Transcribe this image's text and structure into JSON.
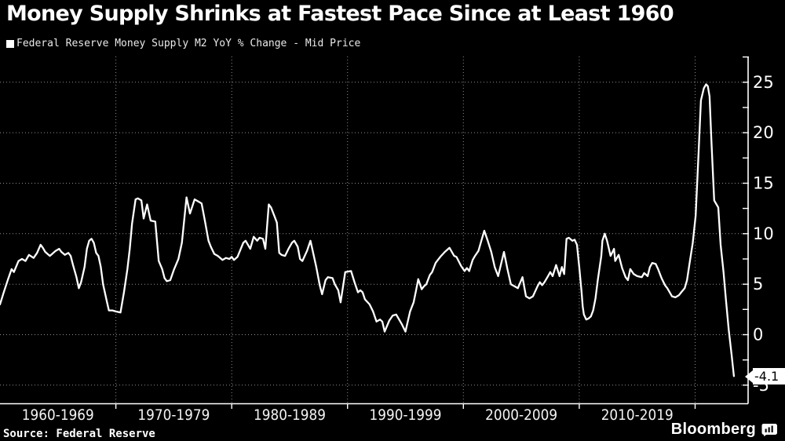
{
  "header": {
    "title": "Money Supply Shrinks at Fastest Pace Since at Least 1960",
    "legend_label": "Federal Reserve Money Supply M2 YoY % Change - Mid Price"
  },
  "footer": {
    "source": "Source: Federal Reserve",
    "brand": "Bloomberg"
  },
  "callout": {
    "label": "-4.1"
  },
  "colors": {
    "background": "#000000",
    "line": "#ffffff",
    "grid": "#8f8f8f",
    "text": "#ffffff",
    "callout_bg": "#ffffff",
    "callout_text": "#000000"
  },
  "chart_data": {
    "type": "line",
    "title": "Money Supply Shrinks at Fastest Pace Since at Least 1960",
    "series_name": "Federal Reserve Money Supply M2 YoY % Change - Mid Price",
    "x_unit": "year",
    "x_range": [
      1960,
      2024.6
    ],
    "ylim": [
      -6.9,
      27.5
    ],
    "ylabel": "YoY % Change",
    "y_axis_side": "right",
    "y_ticks_labeled": [
      25,
      20,
      15,
      10,
      5,
      0,
      -5
    ],
    "y_tick_minor_step": 2.5,
    "x_gridline_years": [
      1970,
      1980,
      1990,
      2000,
      2010,
      2020
    ],
    "x_decade_labels": [
      "1960-1969",
      "1970-1979",
      "1980-1989",
      "1990-1999",
      "2000-2009",
      "2010-2019"
    ],
    "grid": "dotted",
    "legend_position": "top-left",
    "last_point_label": "-4.1",
    "points": [
      [
        1960.0,
        3.0
      ],
      [
        1960.3,
        4.1
      ],
      [
        1960.7,
        5.5
      ],
      [
        1961.0,
        6.5
      ],
      [
        1961.2,
        6.2
      ],
      [
        1961.6,
        7.3
      ],
      [
        1961.9,
        7.5
      ],
      [
        1962.2,
        7.3
      ],
      [
        1962.5,
        7.9
      ],
      [
        1962.9,
        7.6
      ],
      [
        1963.2,
        8.1
      ],
      [
        1963.5,
        8.9
      ],
      [
        1963.7,
        8.6
      ],
      [
        1963.9,
        8.2
      ],
      [
        1964.3,
        7.8
      ],
      [
        1964.5,
        8.0
      ],
      [
        1964.8,
        8.3
      ],
      [
        1965.1,
        8.5
      ],
      [
        1965.3,
        8.2
      ],
      [
        1965.6,
        7.9
      ],
      [
        1965.9,
        8.1
      ],
      [
        1966.1,
        7.8
      ],
      [
        1966.3,
        6.9
      ],
      [
        1966.6,
        5.7
      ],
      [
        1966.8,
        4.6
      ],
      [
        1967.0,
        5.2
      ],
      [
        1967.3,
        6.7
      ],
      [
        1967.5,
        8.5
      ],
      [
        1967.7,
        9.3
      ],
      [
        1967.9,
        9.5
      ],
      [
        1968.1,
        9.1
      ],
      [
        1968.3,
        8.1
      ],
      [
        1968.5,
        7.8
      ],
      [
        1968.7,
        6.7
      ],
      [
        1968.9,
        5.0
      ],
      [
        1969.2,
        3.4
      ],
      [
        1969.4,
        2.4
      ],
      [
        1969.7,
        2.4
      ],
      [
        1970.0,
        2.3
      ],
      [
        1970.4,
        2.2
      ],
      [
        1970.7,
        4.2
      ],
      [
        1971.0,
        6.5
      ],
      [
        1971.2,
        8.5
      ],
      [
        1971.4,
        11.0
      ],
      [
        1971.7,
        13.4
      ],
      [
        1971.9,
        13.5
      ],
      [
        1972.2,
        13.3
      ],
      [
        1972.4,
        11.5
      ],
      [
        1972.7,
        12.9
      ],
      [
        1973.0,
        11.3
      ],
      [
        1973.4,
        11.2
      ],
      [
        1973.7,
        7.3
      ],
      [
        1974.0,
        6.5
      ],
      [
        1974.2,
        5.6
      ],
      [
        1974.4,
        5.3
      ],
      [
        1974.7,
        5.4
      ],
      [
        1975.0,
        6.4
      ],
      [
        1975.4,
        7.5
      ],
      [
        1975.7,
        9.1
      ],
      [
        1976.1,
        13.6
      ],
      [
        1976.4,
        12.0
      ],
      [
        1976.8,
        13.4
      ],
      [
        1977.1,
        13.2
      ],
      [
        1977.4,
        13.0
      ],
      [
        1977.7,
        11.2
      ],
      [
        1978.0,
        9.3
      ],
      [
        1978.2,
        8.7
      ],
      [
        1978.5,
        8.0
      ],
      [
        1978.8,
        7.8
      ],
      [
        1979.2,
        7.4
      ],
      [
        1979.5,
        7.6
      ],
      [
        1979.8,
        7.5
      ],
      [
        1980.0,
        7.7
      ],
      [
        1980.2,
        7.4
      ],
      [
        1980.5,
        7.7
      ],
      [
        1981.0,
        9.1
      ],
      [
        1981.2,
        9.3
      ],
      [
        1981.6,
        8.5
      ],
      [
        1981.9,
        9.7
      ],
      [
        1982.2,
        9.3
      ],
      [
        1982.4,
        9.6
      ],
      [
        1982.7,
        9.5
      ],
      [
        1982.9,
        8.5
      ],
      [
        1983.2,
        12.9
      ],
      [
        1983.4,
        12.6
      ],
      [
        1983.7,
        11.7
      ],
      [
        1983.9,
        11.1
      ],
      [
        1984.1,
        8.1
      ],
      [
        1984.3,
        7.9
      ],
      [
        1984.6,
        7.8
      ],
      [
        1984.9,
        8.5
      ],
      [
        1985.2,
        9.1
      ],
      [
        1985.4,
        9.3
      ],
      [
        1985.7,
        8.7
      ],
      [
        1985.9,
        7.5
      ],
      [
        1986.1,
        7.3
      ],
      [
        1986.5,
        8.3
      ],
      [
        1986.8,
        9.3
      ],
      [
        1987.3,
        6.7
      ],
      [
        1987.6,
        4.9
      ],
      [
        1987.8,
        4.0
      ],
      [
        1988.1,
        5.4
      ],
      [
        1988.3,
        5.7
      ],
      [
        1988.7,
        5.6
      ],
      [
        1988.9,
        5.0
      ],
      [
        1989.2,
        4.4
      ],
      [
        1989.4,
        3.2
      ],
      [
        1989.8,
        6.2
      ],
      [
        1990.3,
        6.3
      ],
      [
        1990.6,
        5.2
      ],
      [
        1990.9,
        4.2
      ],
      [
        1991.1,
        4.4
      ],
      [
        1991.3,
        4.2
      ],
      [
        1991.5,
        3.5
      ],
      [
        1991.9,
        3.0
      ],
      [
        1992.2,
        2.3
      ],
      [
        1992.5,
        1.3
      ],
      [
        1992.8,
        1.5
      ],
      [
        1993.0,
        1.3
      ],
      [
        1993.2,
        0.3
      ],
      [
        1993.6,
        1.4
      ],
      [
        1993.9,
        1.9
      ],
      [
        1994.2,
        2.0
      ],
      [
        1994.4,
        1.6
      ],
      [
        1994.7,
        1.0
      ],
      [
        1995.0,
        0.3
      ],
      [
        1995.4,
        2.3
      ],
      [
        1995.7,
        3.2
      ],
      [
        1995.9,
        4.3
      ],
      [
        1996.1,
        5.5
      ],
      [
        1996.4,
        4.5
      ],
      [
        1996.6,
        4.8
      ],
      [
        1996.8,
        5.0
      ],
      [
        1997.1,
        5.9
      ],
      [
        1997.3,
        6.2
      ],
      [
        1997.6,
        7.1
      ],
      [
        1998.0,
        7.7
      ],
      [
        1998.4,
        8.2
      ],
      [
        1998.8,
        8.6
      ],
      [
        1999.2,
        7.8
      ],
      [
        1999.4,
        7.7
      ],
      [
        1999.8,
        6.8
      ],
      [
        2000.1,
        6.3
      ],
      [
        2000.3,
        6.6
      ],
      [
        2000.5,
        6.3
      ],
      [
        2000.8,
        7.4
      ],
      [
        2001.0,
        7.8
      ],
      [
        2001.3,
        8.3
      ],
      [
        2001.6,
        9.5
      ],
      [
        2001.8,
        10.3
      ],
      [
        2002.1,
        9.3
      ],
      [
        2002.4,
        8.2
      ],
      [
        2002.7,
        6.7
      ],
      [
        2003.0,
        5.8
      ],
      [
        2003.5,
        8.2
      ],
      [
        2003.8,
        6.5
      ],
      [
        2004.1,
        5.0
      ],
      [
        2004.4,
        4.8
      ],
      [
        2004.7,
        4.6
      ],
      [
        2005.1,
        5.7
      ],
      [
        2005.4,
        3.8
      ],
      [
        2005.7,
        3.6
      ],
      [
        2006.0,
        3.8
      ],
      [
        2006.4,
        4.8
      ],
      [
        2006.6,
        5.2
      ],
      [
        2006.8,
        4.9
      ],
      [
        2007.0,
        5.2
      ],
      [
        2007.3,
        5.8
      ],
      [
        2007.5,
        6.2
      ],
      [
        2007.7,
        5.8
      ],
      [
        2008.0,
        6.9
      ],
      [
        2008.3,
        5.8
      ],
      [
        2008.5,
        6.7
      ],
      [
        2008.7,
        6.0
      ],
      [
        2008.9,
        9.5
      ],
      [
        2009.1,
        9.6
      ],
      [
        2009.4,
        9.3
      ],
      [
        2009.6,
        9.4
      ],
      [
        2009.8,
        8.9
      ],
      [
        2010.0,
        6.7
      ],
      [
        2010.2,
        4.2
      ],
      [
        2010.3,
        2.8
      ],
      [
        2010.4,
        2.0
      ],
      [
        2010.6,
        1.5
      ],
      [
        2010.8,
        1.6
      ],
      [
        2011.0,
        1.8
      ],
      [
        2011.2,
        2.4
      ],
      [
        2011.4,
        3.6
      ],
      [
        2011.6,
        5.4
      ],
      [
        2011.9,
        7.8
      ],
      [
        2012.0,
        9.3
      ],
      [
        2012.2,
        10.0
      ],
      [
        2012.4,
        9.3
      ],
      [
        2012.7,
        7.8
      ],
      [
        2013.0,
        8.5
      ],
      [
        2013.1,
        7.3
      ],
      [
        2013.4,
        7.9
      ],
      [
        2013.7,
        6.6
      ],
      [
        2014.0,
        5.7
      ],
      [
        2014.2,
        5.4
      ],
      [
        2014.4,
        6.5
      ],
      [
        2014.7,
        6.0
      ],
      [
        2015.0,
        5.8
      ],
      [
        2015.4,
        5.7
      ],
      [
        2015.6,
        6.1
      ],
      [
        2015.9,
        5.8
      ],
      [
        2016.1,
        6.7
      ],
      [
        2016.3,
        7.1
      ],
      [
        2016.6,
        7.0
      ],
      [
        2016.8,
        6.5
      ],
      [
        2017.1,
        5.6
      ],
      [
        2017.4,
        4.9
      ],
      [
        2017.6,
        4.6
      ],
      [
        2018.0,
        3.8
      ],
      [
        2018.3,
        3.7
      ],
      [
        2018.6,
        3.9
      ],
      [
        2018.8,
        4.2
      ],
      [
        2019.1,
        4.6
      ],
      [
        2019.3,
        5.4
      ],
      [
        2019.5,
        6.9
      ],
      [
        2019.8,
        9.1
      ],
      [
        2020.05,
        11.8
      ],
      [
        2020.3,
        18.0
      ],
      [
        2020.5,
        23.2
      ],
      [
        2020.75,
        24.4
      ],
      [
        2020.95,
        24.8
      ],
      [
        2021.1,
        24.6
      ],
      [
        2021.25,
        23.6
      ],
      [
        2021.4,
        19.3
      ],
      [
        2021.55,
        15.6
      ],
      [
        2021.65,
        13.3
      ],
      [
        2021.9,
        12.8
      ],
      [
        2022.0,
        12.6
      ],
      [
        2022.2,
        8.9
      ],
      [
        2022.45,
        6.2
      ],
      [
        2022.65,
        3.6
      ],
      [
        2022.9,
        0.5
      ],
      [
        2023.15,
        -2.0
      ],
      [
        2023.35,
        -4.1
      ]
    ]
  }
}
